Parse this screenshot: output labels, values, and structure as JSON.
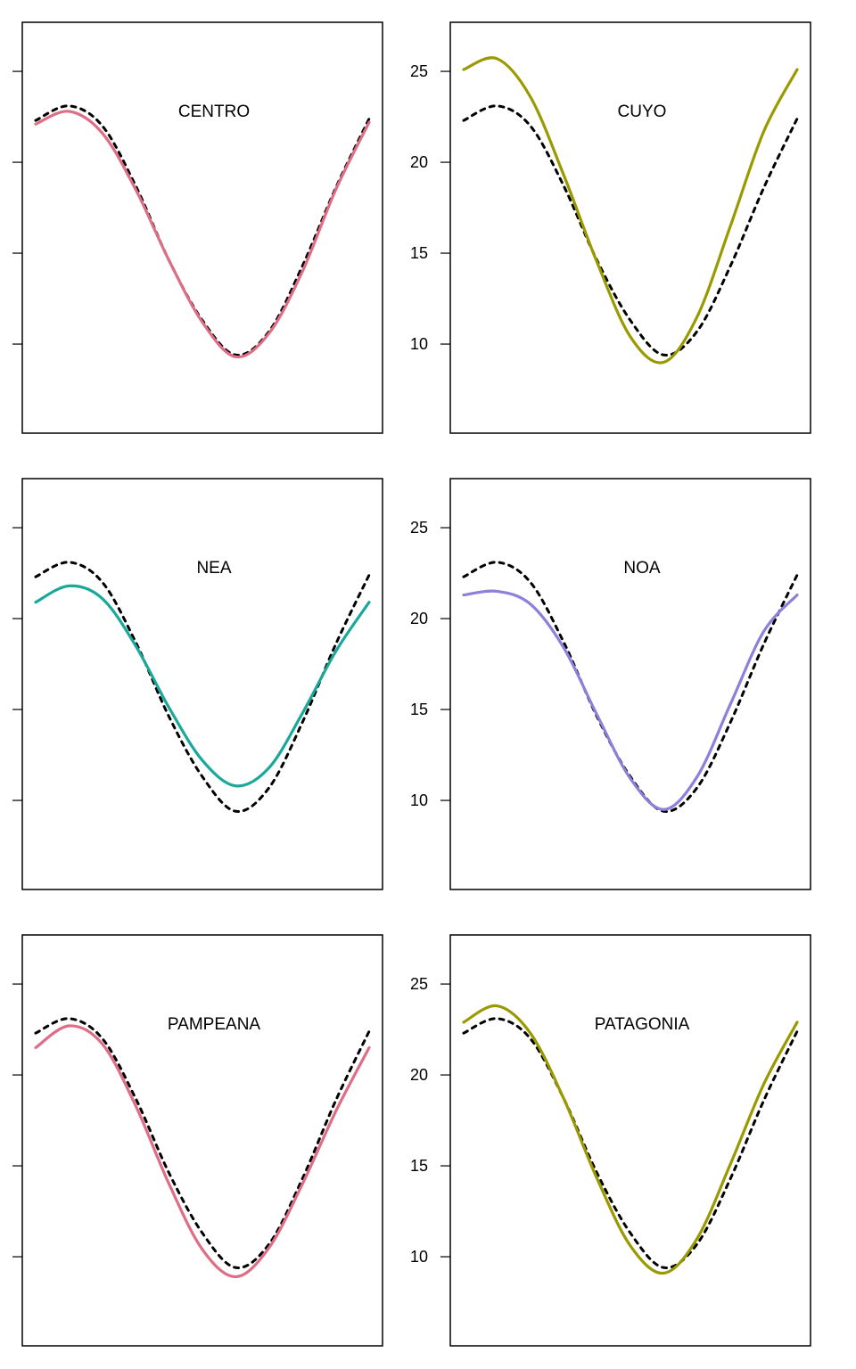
{
  "chart_data": [
    {
      "type": "line",
      "title": "CENTRO",
      "color": "#DD6E86",
      "ylim": [
        5.1,
        27.7
      ],
      "yticks": [
        10,
        15,
        20,
        25
      ],
      "show_tick_labels": false,
      "x": [
        0,
        1,
        2,
        3,
        4,
        5,
        6,
        7,
        8,
        9,
        10
      ],
      "series": [
        {
          "values": [
            22.1,
            22.8,
            21.6,
            18.5,
            14.6,
            11.2,
            9.3,
            10.6,
            14.0,
            18.5,
            22.2
          ]
        }
      ],
      "reference": [
        22.3,
        23.1,
        22.0,
        18.7,
        14.6,
        11.3,
        9.4,
        10.7,
        14.3,
        18.6,
        22.4
      ]
    },
    {
      "type": "line",
      "title": "CUYO",
      "color": "#9A9A00",
      "ylim": [
        5.1,
        27.7
      ],
      "yticks": [
        10,
        15,
        20,
        25
      ],
      "show_tick_labels": true,
      "tick_labels": [
        "10",
        "15",
        "20",
        "25"
      ],
      "x": [
        0,
        1,
        2,
        3,
        4,
        5,
        6,
        7,
        8,
        9,
        10
      ],
      "series": [
        {
          "values": [
            25.1,
            25.7,
            23.6,
            19.3,
            14.5,
            10.4,
            9.0,
            11.5,
            16.5,
            21.7,
            25.1
          ]
        }
      ],
      "reference": [
        22.3,
        23.1,
        22.0,
        18.7,
        14.6,
        11.3,
        9.4,
        10.7,
        14.3,
        18.6,
        22.4
      ]
    },
    {
      "type": "line",
      "title": "NEA",
      "color": "#1AA89A",
      "ylim": [
        5.1,
        27.7
      ],
      "yticks": [
        10,
        15,
        20,
        25
      ],
      "show_tick_labels": false,
      "x": [
        0,
        1,
        2,
        3,
        4,
        5,
        6,
        7,
        8,
        9,
        10
      ],
      "series": [
        {
          "values": [
            20.9,
            21.8,
            21.1,
            18.5,
            15.1,
            12.2,
            10.8,
            11.8,
            14.8,
            18.2,
            20.9
          ]
        }
      ],
      "reference": [
        22.3,
        23.1,
        22.0,
        18.7,
        14.6,
        11.3,
        9.4,
        10.7,
        14.3,
        18.6,
        22.4
      ]
    },
    {
      "type": "line",
      "title": "NOA",
      "color": "#8D80DB",
      "ylim": [
        5.1,
        27.7
      ],
      "yticks": [
        10,
        15,
        20,
        25
      ],
      "show_tick_labels": true,
      "tick_labels": [
        "10",
        "15",
        "20",
        "25"
      ],
      "x": [
        0,
        1,
        2,
        3,
        4,
        5,
        6,
        7,
        8,
        9,
        10
      ],
      "series": [
        {
          "values": [
            21.3,
            21.5,
            20.8,
            18.4,
            14.7,
            11.2,
            9.5,
            11.3,
            15.3,
            19.3,
            21.3
          ]
        }
      ],
      "reference": [
        22.3,
        23.1,
        22.0,
        18.7,
        14.6,
        11.3,
        9.4,
        10.7,
        14.3,
        18.6,
        22.4
      ]
    },
    {
      "type": "line",
      "title": "PAMPEANA",
      "color": "#DD6E86",
      "ylim": [
        5.1,
        27.7
      ],
      "yticks": [
        10,
        15,
        20,
        25
      ],
      "show_tick_labels": false,
      "x": [
        0,
        1,
        2,
        3,
        4,
        5,
        6,
        7,
        8,
        9,
        10
      ],
      "series": [
        {
          "values": [
            21.5,
            22.7,
            21.7,
            18.3,
            14.0,
            10.4,
            8.9,
            10.5,
            14.0,
            18.0,
            21.5
          ]
        }
      ],
      "reference": [
        22.3,
        23.1,
        22.0,
        18.7,
        14.6,
        11.3,
        9.4,
        10.7,
        14.3,
        18.6,
        22.4
      ]
    },
    {
      "type": "line",
      "title": "PATAGONIA",
      "color": "#9A9A00",
      "ylim": [
        5.1,
        27.7
      ],
      "yticks": [
        10,
        15,
        20,
        25
      ],
      "show_tick_labels": true,
      "tick_labels": [
        "10",
        "15",
        "20",
        "25"
      ],
      "x": [
        0,
        1,
        2,
        3,
        4,
        5,
        6,
        7,
        8,
        9,
        10
      ],
      "series": [
        {
          "values": [
            22.9,
            23.8,
            22.3,
            18.7,
            14.3,
            10.6,
            9.1,
            11.0,
            15.1,
            19.5,
            22.9
          ]
        }
      ],
      "reference": [
        22.3,
        23.1,
        22.0,
        18.7,
        14.6,
        11.3,
        9.4,
        10.7,
        14.3,
        18.6,
        22.4
      ]
    }
  ]
}
